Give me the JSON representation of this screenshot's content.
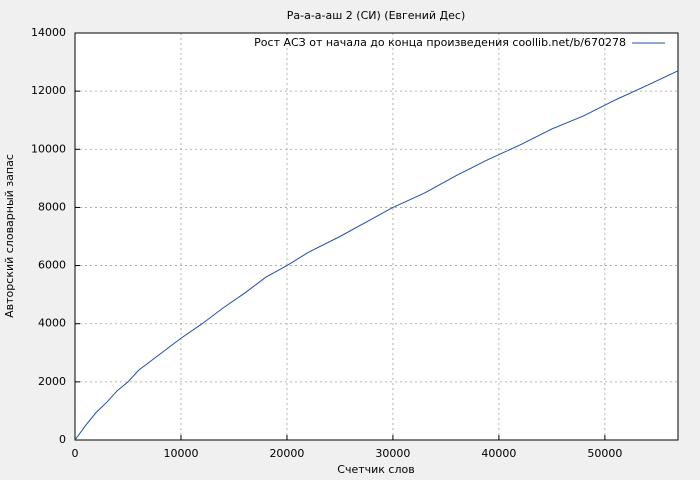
{
  "chart_data": {
    "type": "line",
    "title": "Ра-а-а-аш 2 (СИ) (Евгений Дес)",
    "x_label": "Счетчик слов",
    "y_label": "Авторский словарный запас",
    "x": [
      0,
      1000,
      2000,
      3000,
      4000,
      5000,
      6000,
      8000,
      10000,
      12000,
      14000,
      16000,
      18000,
      20000,
      22000,
      25000,
      28000,
      30000,
      33000,
      36000,
      39000,
      42000,
      45000,
      48000,
      51000,
      54000,
      56900
    ],
    "series": [
      {
        "name": "Рост АСЗ от начала до конца произведения coollib.net/b/670278",
        "color": "#1f4fa8",
        "values": [
          0,
          500,
          950,
          1300,
          1700,
          2000,
          2400,
          2950,
          3500,
          4000,
          4550,
          5050,
          5600,
          6000,
          6450,
          7000,
          7600,
          8000,
          8500,
          9100,
          9650,
          10150,
          10700,
          11150,
          11700,
          12200,
          12700
        ]
      }
    ],
    "xlim": [
      0,
      56900
    ],
    "ylim": [
      0,
      14000
    ],
    "xticks": [
      0,
      10000,
      20000,
      30000,
      40000,
      50000
    ],
    "yticks": [
      0,
      2000,
      4000,
      6000,
      8000,
      10000,
      12000,
      14000
    ],
    "grid": true,
    "legend": "top-right"
  }
}
